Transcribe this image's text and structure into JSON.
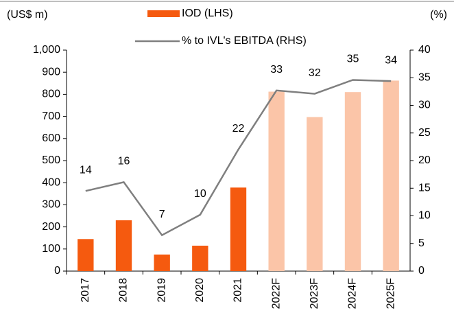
{
  "chart_data": {
    "type": "bar_line",
    "y_label": "(US$ m)",
    "y2_label": "(%)",
    "categories": [
      "2017",
      "2018",
      "2019",
      "2020",
      "2021",
      "2022F",
      "2023F",
      "2024F",
      "2025F"
    ],
    "series": [
      {
        "name": "IOD (LHS)",
        "type": "bar",
        "color": "#f55a0f",
        "colors": [
          "#f55a0f",
          "#f55a0f",
          "#f55a0f",
          "#f55a0f",
          "#f55a0f",
          "#fbc5a8",
          "#fbc5a8",
          "#fbc5a8",
          "#fbc5a8"
        ],
        "values": [
          145,
          230,
          75,
          115,
          378,
          812,
          697,
          810,
          862
        ]
      },
      {
        "name": "% to IVL's EBITDA (RHS)",
        "type": "line",
        "color": "#7f7f7f",
        "axis": "y2",
        "values": [
          14.5,
          16.1,
          6.5,
          10.2,
          22,
          32.7,
          32.1,
          34.6,
          34.4
        ],
        "value_labels": [
          "14",
          "16",
          "7",
          "10",
          "22",
          "33",
          "32",
          "35",
          "34"
        ]
      }
    ],
    "ylim": [
      0,
      1000
    ],
    "yticks": [
      0,
      100,
      200,
      300,
      400,
      500,
      600,
      700,
      800,
      900,
      {
        "value": 1000,
        "label": "1,000"
      }
    ],
    "y2lim": [
      0,
      40
    ],
    "y2ticks": [
      0,
      5,
      10,
      15,
      20,
      25,
      30,
      35,
      40
    ]
  }
}
